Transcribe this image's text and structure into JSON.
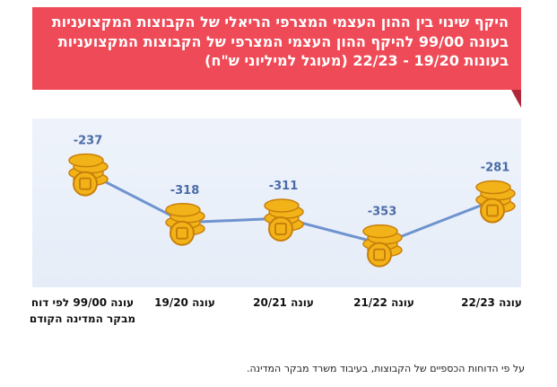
{
  "chart_data": {
    "type": "line",
    "title": "היקף שינוי בין ההון העצמי המצרפי הריאלי של הקבוצות המקצועניות בעונה 99/00 להיקף ההון העצמי המצרפי של הקבוצות המקצועניות בעונות 19/20 - 22/23 (מעוגל למיליוני ש\"ח)",
    "categories": [
      "עונה 99/00 לפי דוח מבקר המדינה הקודם",
      "עונה 19/20",
      "עונה 20/21",
      "עונה 21/22",
      "עונה 22/23"
    ],
    "category_lines": [
      [
        "עונה 99/00 לפי דוח",
        "מבקר המדינה  הקודם"
      ],
      [
        "עונה 19/20"
      ],
      [
        "עונה 20/21"
      ],
      [
        "עונה 21/22"
      ],
      [
        "עונה 22/23"
      ]
    ],
    "values": [
      -237,
      -318,
      -311,
      -353,
      -281
    ],
    "value_labels": [
      "-237",
      "-318",
      "-311",
      "-353",
      "-281"
    ],
    "ylim": [
      -380,
      -220
    ],
    "grid": false,
    "line_color": "#6f93cf"
  },
  "source_note": "על פי הדוחות הכספיים של הקבוצות, בעיבוד משרד מבקר המדינה.",
  "colors": {
    "title_bg": "#ef4a57",
    "title_fold": "#b0273a",
    "coin": "#f2b318",
    "coin_dark": "#c97f0a"
  },
  "icons": {
    "marker": "coin-stack-icon"
  }
}
